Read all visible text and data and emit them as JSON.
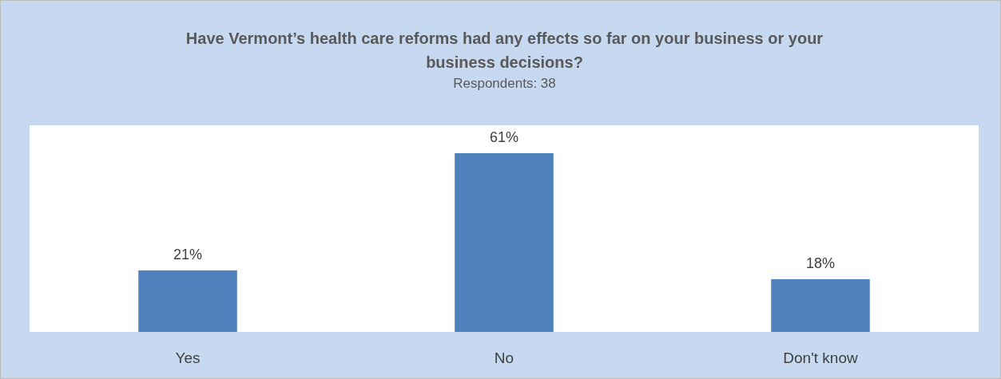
{
  "chart_data": {
    "type": "bar",
    "title": "Have Vermont’s health care reforms had any effects so far on your business or your business decisions?",
    "subtitle": "Respondents: 38",
    "categories": [
      "Yes",
      "No",
      "Don't know"
    ],
    "values": [
      21,
      61,
      18
    ],
    "value_labels": [
      "21%",
      "61%",
      "18%"
    ],
    "color": "#4f81bd"
  }
}
